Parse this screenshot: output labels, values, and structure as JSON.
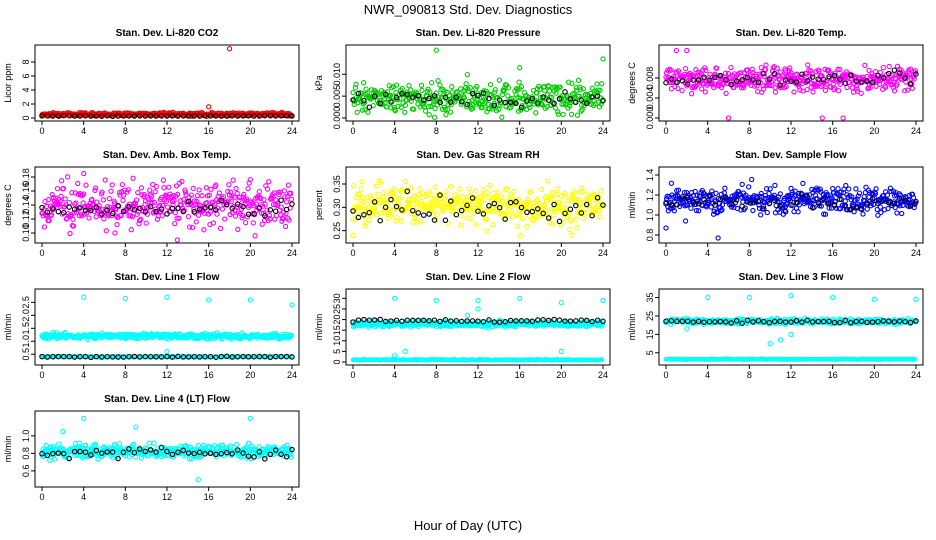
{
  "figure": {
    "title": "NWR_090813 Std. Dev. Diagnostics",
    "xlabel": "Hour of Day (UTC)"
  },
  "chart_data": [
    {
      "type": "scatter",
      "title": "Stan. Dev. Li-820 CO2",
      "ylabel": "Licor ppm",
      "color": "#ff0000",
      "xlim": [
        0,
        24
      ],
      "ylim": [
        0,
        10
      ],
      "xticks": [
        0,
        4,
        8,
        12,
        16,
        20,
        24
      ],
      "yticks": [
        0,
        2,
        4,
        6,
        8
      ],
      "ytick_labels": [
        "0",
        "2",
        "4",
        "6",
        "8"
      ],
      "band": {
        "y": 0.55,
        "spread": 0.25
      },
      "black_band": {
        "y": 0.3,
        "spread": 0.05
      },
      "outliers": [
        [
          18,
          9.9
        ],
        [
          16,
          1.6
        ]
      ]
    },
    {
      "type": "scatter",
      "title": "Stan. Dev. Li-820 Pressure",
      "ylabel": "kPa",
      "color": "#00cc00",
      "xlim": [
        0,
        24
      ],
      "ylim": [
        0,
        0.016
      ],
      "xticks": [
        0,
        4,
        8,
        12,
        16,
        20,
        24
      ],
      "yticks": [
        0,
        0.005,
        0.01
      ],
      "ytick_labels": [
        "0.000",
        "0.005",
        "0.010"
      ],
      "band": {
        "y": 0.0045,
        "spread": 0.004
      },
      "black_band": {
        "y": 0.0045,
        "spread": 0.002
      },
      "outliers": [
        [
          8,
          0.0155
        ],
        [
          24,
          0.0135
        ],
        [
          16,
          0.0115
        ]
      ]
    },
    {
      "type": "scatter",
      "title": "Stan. Dev. Li-820 Temp.",
      "ylabel": "degrees C",
      "color": "#ff00ff",
      "xlim": [
        0,
        24
      ],
      "ylim": [
        0,
        0.014
      ],
      "xticks": [
        0,
        4,
        8,
        12,
        16,
        20,
        24
      ],
      "yticks": [
        0,
        0.004,
        0.008
      ],
      "ytick_labels": [
        "0.000",
        "0.004",
        "0.008"
      ],
      "band": {
        "y": 0.0078,
        "spread": 0.0028
      },
      "black_band": {
        "y": 0.0078,
        "spread": 0.0015
      },
      "outliers": [
        [
          6,
          0
        ],
        [
          15,
          0
        ],
        [
          17,
          0
        ],
        [
          1,
          0.0135
        ],
        [
          2,
          0.0135
        ]
      ]
    },
    {
      "type": "scatter",
      "title": "Stan. Dev. Amb. Box Temp.",
      "ylabel": "degrees C",
      "color": "#ff00ff",
      "xlim": [
        0,
        24
      ],
      "ylim": [
        0.09,
        0.19
      ],
      "xticks": [
        0,
        4,
        8,
        12,
        16,
        20,
        24
      ],
      "yticks": [
        0.1,
        0.12,
        0.14,
        0.16,
        0.18
      ],
      "ytick_labels": [
        "0.10",
        "0.12",
        "0.14",
        "0.16",
        "0.18"
      ],
      "band": {
        "y": 0.14,
        "spread": 0.035
      },
      "black_band": {
        "y": 0.135,
        "spread": 0.015
      },
      "outliers": [
        [
          4,
          0.185
        ],
        [
          7,
          0.1
        ],
        [
          13,
          0.09
        ]
      ]
    },
    {
      "type": "scatter",
      "title": "Stan. Dev. Gas Stream RH",
      "ylabel": "percent",
      "color": "#ffff00",
      "xlim": [
        0,
        24
      ],
      "ylim": [
        0.23,
        0.38
      ],
      "xticks": [
        0,
        4,
        8,
        12,
        16,
        20,
        24
      ],
      "yticks": [
        0.25,
        0.3,
        0.35
      ],
      "ytick_labels": [
        "0.25",
        "0.30",
        "0.35"
      ],
      "band": {
        "y": 0.305,
        "spread": 0.05
      },
      "black_band": {
        "y": 0.3,
        "spread": 0.035
      },
      "outliers": [
        [
          0,
          0.24
        ],
        [
          21,
          0.24
        ]
      ]
    },
    {
      "type": "scatter",
      "title": "Stan. Dev. Sample Flow",
      "ylabel": "ml/min",
      "color": "#0000ff",
      "xlim": [
        0,
        24
      ],
      "ylim": [
        0.75,
        1.45
      ],
      "xticks": [
        0,
        4,
        8,
        12,
        16,
        20,
        24
      ],
      "yticks": [
        0.8,
        1.0,
        1.2,
        1.4
      ],
      "ytick_labels": [
        "0.8",
        "1.0",
        "1.2",
        "1.4"
      ],
      "band": {
        "y": 1.15,
        "spread": 0.15
      },
      "black_band": {
        "y": 1.12,
        "spread": 0.1
      },
      "outliers": [
        [
          5,
          0.77
        ],
        [
          0,
          0.87
        ]
      ]
    },
    {
      "type": "scatter",
      "title": "Stan. Dev. Line 1 Flow",
      "ylabel": "ml/min",
      "color": "#00ffff",
      "xlim": [
        0,
        24
      ],
      "ylim": [
        0.2,
        2.9
      ],
      "xticks": [
        0,
        4,
        8,
        12,
        16,
        20,
        24
      ],
      "yticks": [
        0.5,
        1.0,
        1.5,
        2.0,
        2.5
      ],
      "ytick_labels": [
        "0.5",
        "1.0",
        "1.5",
        "2.0",
        "2.5"
      ],
      "band": {
        "y": 1.2,
        "spread": 0.12
      },
      "band2": {
        "y": 0.4,
        "spread": 0.03
      },
      "black_band": {
        "y": 0.4,
        "spread": 0.02
      },
      "outliers": [
        [
          4,
          2.7
        ],
        [
          8,
          2.65
        ],
        [
          12,
          2.7
        ],
        [
          16,
          2.6
        ],
        [
          20,
          2.6
        ],
        [
          24,
          2.4
        ],
        [
          12,
          0.6
        ]
      ]
    },
    {
      "type": "scatter",
      "title": "Stan. Dev. Line 2 Flow",
      "ylabel": "ml/min",
      "color": "#00ffff",
      "xlim": [
        0,
        24
      ],
      "ylim": [
        0,
        33
      ],
      "xticks": [
        0,
        4,
        8,
        12,
        16,
        20,
        24
      ],
      "yticks": [
        0,
        5,
        10,
        15,
        20,
        25,
        30
      ],
      "ytick_labels": [
        "0",
        "5",
        "10",
        "15",
        "20",
        "25",
        "30"
      ],
      "band": {
        "y": 18,
        "spread": 1.5
      },
      "band2": {
        "y": 1,
        "spread": 0.4
      },
      "black_band": {
        "y": 19.5,
        "spread": 0.8
      },
      "outliers": [
        [
          4,
          30
        ],
        [
          8,
          29
        ],
        [
          12,
          29
        ],
        [
          16,
          30
        ],
        [
          20,
          28
        ],
        [
          24,
          29
        ],
        [
          5,
          5
        ],
        [
          13,
          16
        ],
        [
          12,
          25
        ],
        [
          11,
          22
        ],
        [
          20,
          5
        ],
        [
          4,
          3
        ]
      ]
    },
    {
      "type": "scatter",
      "title": "Stan. Dev. Line 3 Flow",
      "ylabel": "ml/min",
      "color": "#00ffff",
      "xlim": [
        0,
        24
      ],
      "ylim": [
        0,
        38
      ],
      "xticks": [
        0,
        4,
        8,
        12,
        16,
        20,
        24
      ],
      "yticks": [
        5,
        15,
        25,
        35
      ],
      "ytick_labels": [
        "5",
        "15",
        "25",
        "35"
      ],
      "band": {
        "y": 22,
        "spread": 1.5
      },
      "band2": {
        "y": 1.5,
        "spread": 0.4
      },
      "black_band": {
        "y": 22,
        "spread": 1
      },
      "outliers": [
        [
          4,
          35
        ],
        [
          8,
          35
        ],
        [
          12,
          36
        ],
        [
          16,
          35
        ],
        [
          20,
          34
        ],
        [
          24,
          34
        ],
        [
          10,
          10
        ],
        [
          11,
          12
        ],
        [
          12,
          15
        ],
        [
          2,
          18
        ]
      ]
    },
    {
      "type": "scatter",
      "title": "Stan. Dev. Line 4 (LT) Flow",
      "ylabel": "ml/min",
      "color": "#00ffff",
      "xlim": [
        0,
        24
      ],
      "ylim": [
        0.45,
        1.25
      ],
      "xticks": [
        0,
        4,
        8,
        12,
        16,
        20,
        24
      ],
      "yticks": [
        0.6,
        0.8,
        1.0
      ],
      "ytick_labels": [
        "0.6",
        "0.8",
        "1.0"
      ],
      "band": {
        "y": 0.82,
        "spread": 0.09
      },
      "black_band": {
        "y": 0.8,
        "spread": 0.07
      },
      "outliers": [
        [
          4,
          1.2
        ],
        [
          20,
          1.2
        ],
        [
          15,
          0.5
        ],
        [
          9,
          1.1
        ],
        [
          2,
          1.05
        ]
      ]
    }
  ]
}
